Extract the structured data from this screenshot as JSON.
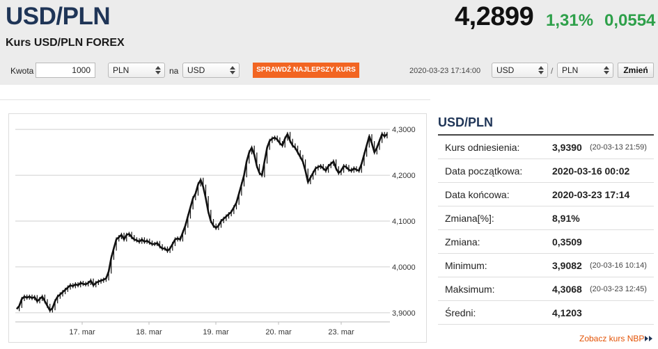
{
  "header": {
    "pair": "USD/PLN",
    "subtitle": "Kurs USD/PLN FOREX",
    "price": "4,2899",
    "change_pct": "1,31%",
    "change_abs": "0,0554"
  },
  "converter": {
    "amount_label": "Kwota",
    "amount_value": "1000",
    "from_currency": "PLN",
    "to_label": "na",
    "to_currency": "USD",
    "best_rate_button": "SPRAWDŹ NAJLEPSZY KURS"
  },
  "pair_selector": {
    "timestamp": "2020-03-23 17:14:00",
    "base": "USD",
    "separator": "/",
    "quote": "PLN",
    "change_button": "Zmień"
  },
  "info": {
    "title": "USD/PLN",
    "rows": [
      {
        "label": "Kurs odniesienia:",
        "value": "3,9390",
        "time": "(20-03-13 21:59)"
      },
      {
        "label": "Data początkowa:",
        "value": "2020-03-16 00:02",
        "time": ""
      },
      {
        "label": "Data końcowa:",
        "value": "2020-03-23 17:14",
        "time": ""
      },
      {
        "label": "Zmiana[%]:",
        "value": "8,91%",
        "time": ""
      },
      {
        "label": "Zmiana:",
        "value": "0,3509",
        "time": ""
      },
      {
        "label": "Minimum:",
        "value": "3,9082",
        "time": "(20-03-16 10:14)"
      },
      {
        "label": "Maksimum:",
        "value": "4,3068",
        "time": "(20-03-23 12:45)"
      },
      {
        "label": "Średni:",
        "value": "4,1203",
        "time": ""
      }
    ],
    "nbp_link": "Zobacz kurs NBP"
  },
  "colors": {
    "accent_orange": "#f26522",
    "positive_green": "#2ea04a",
    "title_navy": "#1f3557"
  },
  "chart_data": {
    "type": "line",
    "title": "",
    "xlabel": "",
    "ylabel": "",
    "x_ticks": [
      "17. mar",
      "18. mar",
      "19. mar",
      "20. mar",
      "23. mar"
    ],
    "y_ticks": [
      "3,9000",
      "4,0000",
      "4,1000",
      "4,2000",
      "4,3000"
    ],
    "ylim": [
      3.88,
      4.32
    ],
    "grid": true,
    "series": [
      {
        "values": [
          3.908,
          3.915,
          3.93,
          3.935,
          3.933,
          3.935,
          3.932,
          3.934,
          3.925,
          3.93,
          3.935,
          3.925,
          3.915,
          3.905,
          3.91,
          3.925,
          3.935,
          3.94,
          3.945,
          3.95,
          3.955,
          3.96,
          3.958,
          3.962,
          3.96,
          3.965,
          3.963,
          3.962,
          3.965,
          3.97,
          3.96,
          3.965,
          3.968,
          3.97,
          3.972,
          3.975,
          3.99,
          4.02,
          4.04,
          4.06,
          4.065,
          4.07,
          4.06,
          4.07,
          4.072,
          4.065,
          4.06,
          4.058,
          4.055,
          4.06,
          4.055,
          4.057,
          4.053,
          4.05,
          4.05,
          4.052,
          4.045,
          4.04,
          4.04,
          4.035,
          4.04,
          4.05,
          4.06,
          4.062,
          4.06,
          4.075,
          4.09,
          4.11,
          4.13,
          4.15,
          4.16,
          4.18,
          4.19,
          4.175,
          4.15,
          4.12,
          4.1,
          4.09,
          4.085,
          4.09,
          4.1,
          4.105,
          4.11,
          4.115,
          4.12,
          4.13,
          4.14,
          4.16,
          4.18,
          4.2,
          4.23,
          4.25,
          4.26,
          4.245,
          4.22,
          4.205,
          4.2,
          4.23,
          4.26,
          4.275,
          4.28,
          4.282,
          4.278,
          4.27,
          4.265,
          4.28,
          4.29,
          4.275,
          4.265,
          4.26,
          4.25,
          4.24,
          4.23,
          4.21,
          4.185,
          4.195,
          4.205,
          4.215,
          4.218,
          4.22,
          4.215,
          4.21,
          4.22,
          4.225,
          4.23,
          4.215,
          4.205,
          4.21,
          4.22,
          4.218,
          4.212,
          4.21,
          4.215,
          4.212,
          4.21,
          4.225,
          4.245,
          4.265,
          4.285,
          4.27,
          4.25,
          4.26,
          4.275,
          4.29,
          4.285,
          4.2899
        ]
      }
    ]
  }
}
